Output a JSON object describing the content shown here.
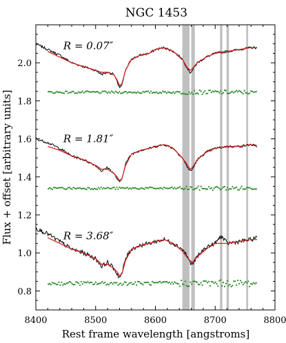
{
  "chart_data": {
    "type": "line",
    "title": "NGC 1453",
    "xlabel": "Rest frame wavelength [angstroms]",
    "ylabel": "Flux + offset [arbitrary units]",
    "xlim": [
      8400,
      8800
    ],
    "ylim": [
      0.7,
      2.2
    ],
    "x_ticks": [
      8400,
      8500,
      8600,
      8700,
      8800
    ],
    "y_ticks": [
      0.8,
      1.0,
      1.2,
      1.4,
      1.6,
      1.8,
      2.0
    ],
    "x_tick_labels": [
      "8400",
      "8500",
      "8600",
      "8700",
      "8800"
    ],
    "y_tick_labels": [
      "0.8",
      "1.0",
      "1.2",
      "1.4",
      "1.6",
      "1.8",
      "2.0"
    ],
    "grid": false,
    "masked_regions": [
      [
        8645,
        8657
      ],
      [
        8660,
        8666
      ],
      [
        8708,
        8712
      ],
      [
        8719,
        8723
      ],
      [
        8752,
        8755
      ]
    ],
    "colors": {
      "spectrum": "#000000",
      "model": "#d62020",
      "residuals": "#2a8a2a",
      "mask": "#bdbdbd"
    },
    "panels": [
      {
        "label": "R = 0.07″",
        "spectrum_x": [
          8400,
          8420,
          8440,
          8460,
          8480,
          8500,
          8510,
          8520,
          8530,
          8536,
          8540,
          8544,
          8550,
          8560,
          8575,
          8590,
          8600,
          8615,
          8630,
          8645,
          8652,
          8658,
          8662,
          8670,
          8685,
          8700,
          8720,
          8740,
          8760,
          8770
        ],
        "spectrum_y": [
          2.1,
          2.07,
          2.04,
          2.0,
          1.98,
          1.96,
          1.94,
          1.95,
          1.94,
          1.9,
          1.87,
          1.88,
          1.96,
          2.02,
          2.04,
          2.05,
          2.07,
          2.08,
          2.06,
          2.02,
          1.98,
          1.95,
          1.96,
          2.0,
          2.03,
          2.05,
          2.06,
          2.07,
          2.08,
          2.08
        ],
        "model_x": [
          8420,
          8440,
          8460,
          8480,
          8500,
          8510,
          8520,
          8530,
          8536,
          8540,
          8544,
          8550,
          8560,
          8575,
          8590,
          8600,
          8615,
          8630,
          8645,
          8652,
          8658,
          8662,
          8670,
          8685,
          8700,
          8720,
          8740,
          8760,
          8770
        ],
        "model_y": [
          2.06,
          2.03,
          2.0,
          1.98,
          1.96,
          1.95,
          1.95,
          1.94,
          1.91,
          1.88,
          1.89,
          1.96,
          2.02,
          2.04,
          2.05,
          2.07,
          2.08,
          2.06,
          2.02,
          1.98,
          1.96,
          1.97,
          2.0,
          2.03,
          2.05,
          2.06,
          2.07,
          2.08,
          2.08
        ],
        "residual_level": 1.845,
        "residual_scatter": 0.006
      },
      {
        "label": "R = 1.81″",
        "spectrum_x": [
          8400,
          8420,
          8440,
          8460,
          8480,
          8500,
          8510,
          8520,
          8530,
          8536,
          8540,
          8544,
          8550,
          8560,
          8575,
          8590,
          8600,
          8615,
          8630,
          8645,
          8652,
          8658,
          8662,
          8670,
          8685,
          8700,
          8720,
          8740,
          8760,
          8770
        ],
        "spectrum_y": [
          1.6,
          1.58,
          1.55,
          1.51,
          1.49,
          1.46,
          1.43,
          1.45,
          1.42,
          1.39,
          1.37,
          1.39,
          1.47,
          1.52,
          1.54,
          1.55,
          1.56,
          1.57,
          1.55,
          1.5,
          1.46,
          1.43,
          1.44,
          1.49,
          1.53,
          1.55,
          1.56,
          1.56,
          1.57,
          1.56
        ],
        "model_x": [
          8420,
          8440,
          8460,
          8480,
          8500,
          8510,
          8520,
          8530,
          8536,
          8540,
          8544,
          8550,
          8560,
          8575,
          8590,
          8600,
          8615,
          8630,
          8645,
          8652,
          8658,
          8662,
          8670,
          8685,
          8700,
          8720,
          8740,
          8760,
          8770
        ],
        "model_y": [
          1.56,
          1.54,
          1.51,
          1.49,
          1.46,
          1.44,
          1.44,
          1.42,
          1.4,
          1.38,
          1.39,
          1.46,
          1.52,
          1.54,
          1.55,
          1.56,
          1.57,
          1.55,
          1.5,
          1.47,
          1.44,
          1.45,
          1.49,
          1.53,
          1.55,
          1.56,
          1.56,
          1.57,
          1.56
        ],
        "residual_level": 1.34,
        "residual_scatter": 0.006
      },
      {
        "label": "R = 3.68″",
        "spectrum_x": [
          8400,
          8420,
          8440,
          8460,
          8480,
          8500,
          8510,
          8520,
          8530,
          8536,
          8540,
          8544,
          8550,
          8560,
          8575,
          8590,
          8600,
          8615,
          8630,
          8645,
          8652,
          8658,
          8662,
          8670,
          8685,
          8700,
          8710,
          8720,
          8740,
          8760,
          8770
        ],
        "spectrum_y": [
          1.13,
          1.1,
          1.06,
          1.02,
          1.0,
          0.97,
          0.93,
          0.95,
          0.92,
          0.89,
          0.87,
          0.89,
          0.97,
          1.02,
          1.04,
          1.05,
          1.06,
          1.07,
          1.05,
          1.02,
          0.99,
          0.95,
          0.94,
          0.98,
          1.03,
          1.05,
          1.09,
          1.05,
          1.06,
          1.07,
          1.08
        ],
        "model_x": [
          8420,
          8440,
          8460,
          8480,
          8500,
          8510,
          8520,
          8530,
          8536,
          8540,
          8544,
          8550,
          8560,
          8575,
          8590,
          8600,
          8615,
          8630,
          8645,
          8652,
          8658,
          8662,
          8670,
          8685,
          8700,
          8720,
          8740,
          8760,
          8770
        ],
        "model_y": [
          1.08,
          1.05,
          1.02,
          1.0,
          0.97,
          0.94,
          0.94,
          0.92,
          0.9,
          0.88,
          0.89,
          0.96,
          1.02,
          1.04,
          1.05,
          1.06,
          1.07,
          1.05,
          1.01,
          0.98,
          0.96,
          0.95,
          0.98,
          1.02,
          1.05,
          1.05,
          1.06,
          1.07,
          1.07
        ],
        "residual_level": 0.84,
        "residual_scatter": 0.01
      }
    ]
  }
}
